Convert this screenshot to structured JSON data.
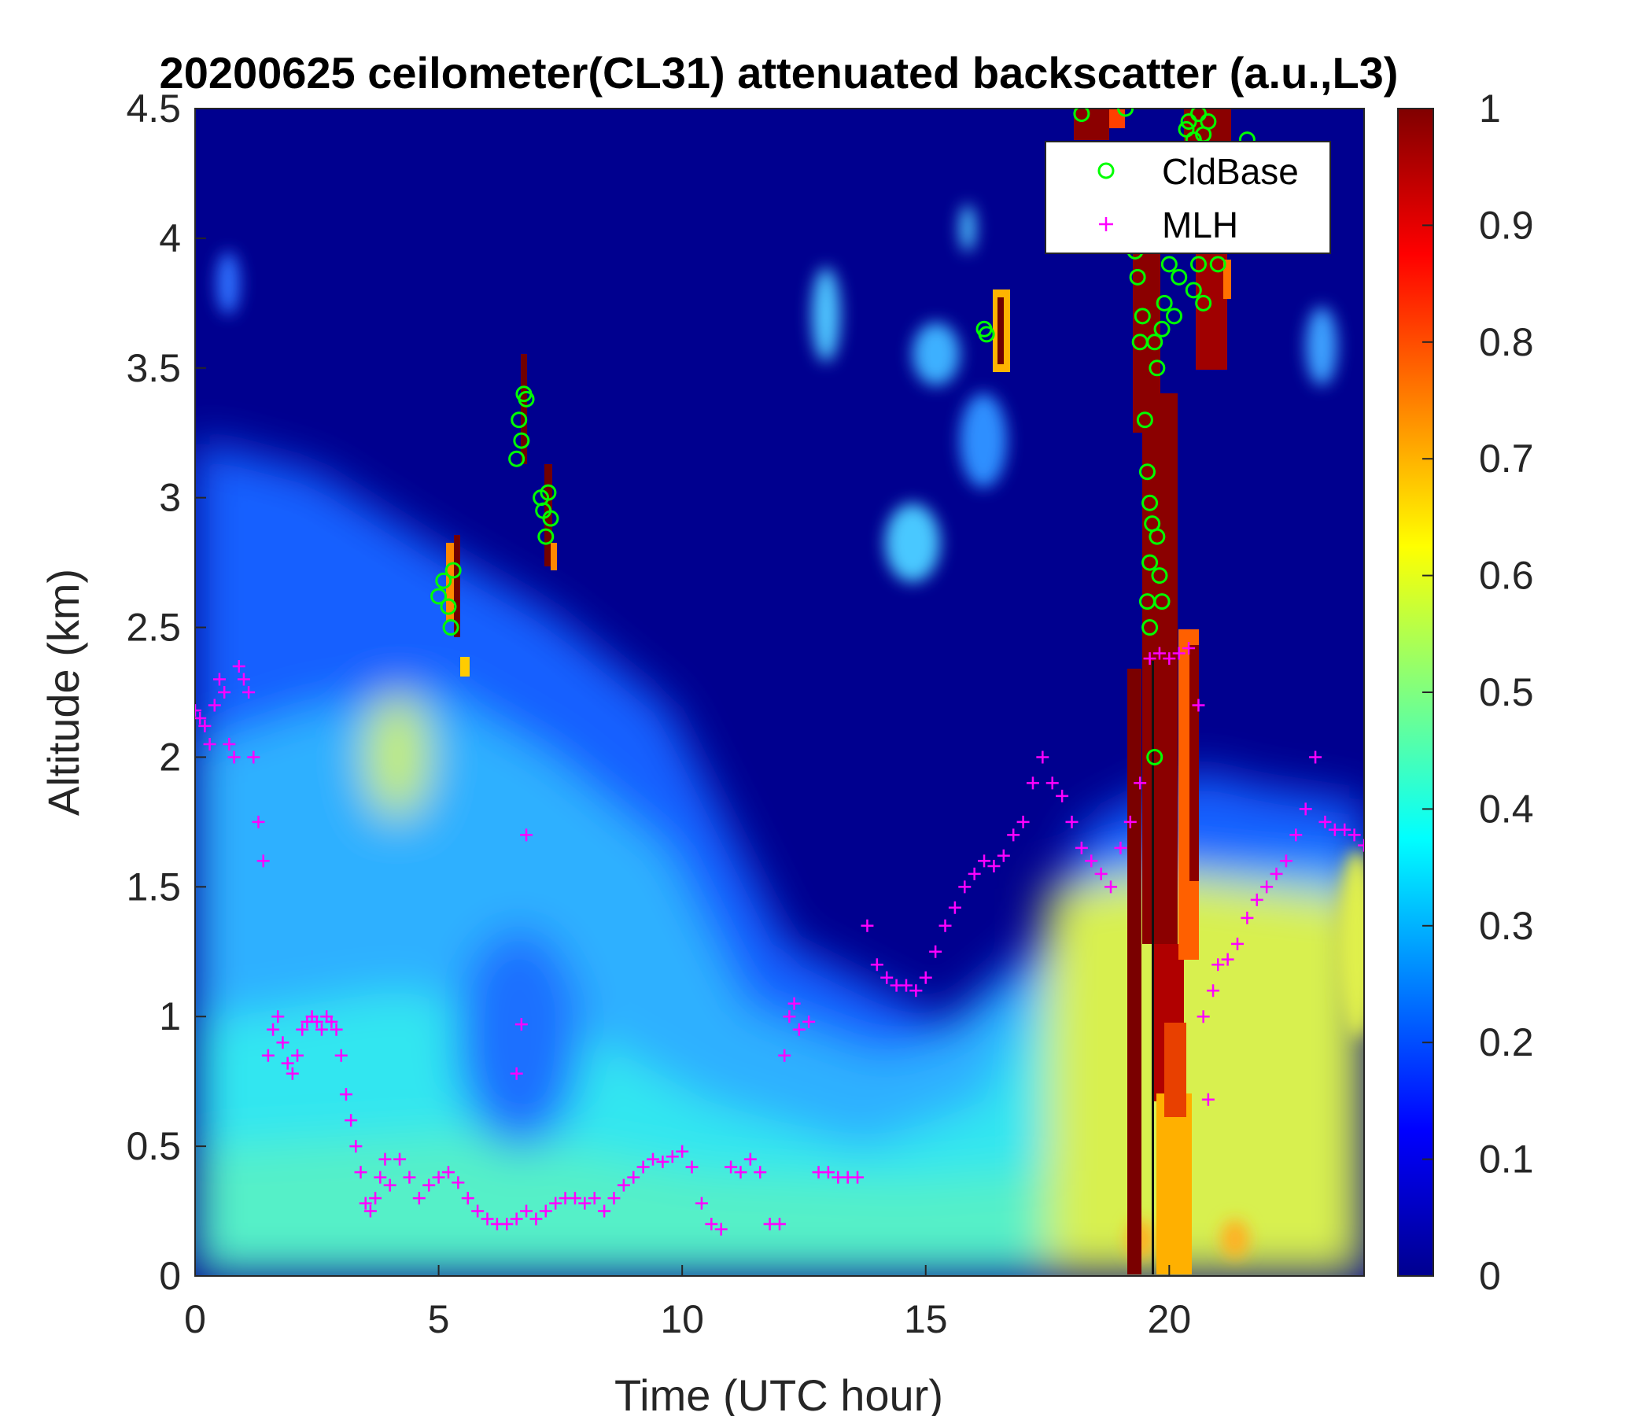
{
  "chart_data": {
    "type": "heatmap",
    "title": "20200625 ceilometer(CL31) attenuated backscatter (a.u.,L3)",
    "xlabel": "Time (UTC hour)",
    "ylabel": "Altitude (km)",
    "xlim": [
      0,
      24
    ],
    "ylim": [
      0,
      4.5
    ],
    "x_ticks": [
      "0",
      "5",
      "10",
      "15",
      "20"
    ],
    "y_ticks": [
      "0",
      "0.5",
      "1",
      "1.5",
      "2",
      "2.5",
      "3",
      "3.5",
      "4",
      "4.5"
    ],
    "colorbar": {
      "colormap": "jet",
      "range": [
        0,
        1
      ],
      "ticks": [
        "0",
        "0.1",
        "0.2",
        "0.3",
        "0.4",
        "0.5",
        "0.6",
        "0.7",
        "0.8",
        "0.9",
        "1"
      ]
    },
    "legend": {
      "placement": "top-right",
      "entries": [
        "CldBase",
        "MLH"
      ]
    },
    "colors": {
      "CldBase": "#00ff00",
      "MLH": "#ff00ff",
      "background": "#00008f"
    },
    "backscatter_description_points": [
      {
        "x": 2,
        "y": 0.2,
        "value": 0.45
      },
      {
        "x": 4,
        "y": 2.0,
        "value": 0.55
      },
      {
        "x": 10,
        "y": 0.5,
        "value": 0.3
      },
      {
        "x": 19.5,
        "y": 0.2,
        "value": 0.6
      },
      {
        "x": 20,
        "y": 1.5,
        "value": 1.0
      },
      {
        "x": 23,
        "y": 0.5,
        "value": 0.5
      }
    ],
    "series": [
      {
        "name": "CldBase",
        "marker": "circle",
        "points": [
          [
            5.0,
            2.62
          ],
          [
            5.1,
            2.68
          ],
          [
            5.2,
            2.58
          ],
          [
            5.25,
            2.5
          ],
          [
            5.3,
            2.72
          ],
          [
            6.6,
            3.15
          ],
          [
            6.65,
            3.3
          ],
          [
            6.7,
            3.22
          ],
          [
            6.75,
            3.4
          ],
          [
            6.8,
            3.38
          ],
          [
            7.1,
            3.0
          ],
          [
            7.15,
            2.95
          ],
          [
            7.2,
            2.85
          ],
          [
            7.25,
            3.02
          ],
          [
            7.3,
            2.92
          ],
          [
            16.2,
            3.65
          ],
          [
            16.25,
            3.63
          ],
          [
            18.2,
            4.48
          ],
          [
            19.1,
            4.5
          ],
          [
            19.3,
            3.95
          ],
          [
            19.35,
            3.85
          ],
          [
            19.4,
            3.6
          ],
          [
            19.45,
            3.7
          ],
          [
            19.5,
            3.3
          ],
          [
            19.55,
            3.1
          ],
          [
            19.6,
            2.98
          ],
          [
            19.65,
            2.9
          ],
          [
            19.6,
            2.75
          ],
          [
            19.55,
            2.6
          ],
          [
            19.6,
            2.5
          ],
          [
            19.7,
            2.0
          ],
          [
            19.75,
            2.85
          ],
          [
            19.8,
            2.7
          ],
          [
            19.85,
            2.6
          ],
          [
            19.7,
            3.6
          ],
          [
            19.75,
            3.5
          ],
          [
            19.85,
            3.65
          ],
          [
            19.9,
            3.75
          ],
          [
            20.0,
            3.9
          ],
          [
            20.1,
            3.7
          ],
          [
            20.2,
            3.85
          ],
          [
            20.3,
            4.2
          ],
          [
            20.35,
            4.42
          ],
          [
            20.4,
            4.45
          ],
          [
            20.5,
            4.38
          ],
          [
            20.6,
            4.48
          ],
          [
            20.7,
            4.4
          ],
          [
            20.8,
            4.45
          ],
          [
            20.5,
            3.8
          ],
          [
            20.6,
            3.9
          ],
          [
            20.7,
            3.75
          ],
          [
            21.0,
            3.9
          ],
          [
            21.6,
            4.38
          ]
        ]
      },
      {
        "name": "MLH",
        "marker": "plus",
        "points": [
          [
            0.0,
            2.18
          ],
          [
            0.1,
            2.15
          ],
          [
            0.2,
            2.12
          ],
          [
            0.3,
            2.05
          ],
          [
            0.4,
            2.2
          ],
          [
            0.5,
            2.3
          ],
          [
            0.6,
            2.25
          ],
          [
            0.7,
            2.05
          ],
          [
            0.8,
            2.0
          ],
          [
            0.9,
            2.35
          ],
          [
            1.0,
            2.3
          ],
          [
            1.1,
            2.25
          ],
          [
            1.2,
            2.0
          ],
          [
            1.3,
            1.75
          ],
          [
            1.4,
            1.6
          ],
          [
            1.5,
            0.85
          ],
          [
            1.6,
            0.95
          ],
          [
            1.7,
            1.0
          ],
          [
            1.8,
            0.9
          ],
          [
            1.9,
            0.82
          ],
          [
            2.0,
            0.78
          ],
          [
            2.1,
            0.85
          ],
          [
            2.2,
            0.95
          ],
          [
            2.3,
            0.98
          ],
          [
            2.4,
            1.0
          ],
          [
            2.5,
            0.98
          ],
          [
            2.6,
            0.95
          ],
          [
            2.7,
            1.0
          ],
          [
            2.8,
            0.98
          ],
          [
            2.9,
            0.95
          ],
          [
            3.0,
            0.85
          ],
          [
            3.1,
            0.7
          ],
          [
            3.2,
            0.6
          ],
          [
            3.3,
            0.5
          ],
          [
            3.4,
            0.4
          ],
          [
            3.5,
            0.28
          ],
          [
            3.6,
            0.25
          ],
          [
            3.7,
            0.3
          ],
          [
            3.8,
            0.38
          ],
          [
            3.9,
            0.45
          ],
          [
            4.0,
            0.35
          ],
          [
            4.2,
            0.45
          ],
          [
            4.4,
            0.38
          ],
          [
            4.6,
            0.3
          ],
          [
            4.8,
            0.35
          ],
          [
            5.0,
            0.38
          ],
          [
            5.2,
            0.4
          ],
          [
            5.4,
            0.36
          ],
          [
            5.6,
            0.3
          ],
          [
            5.8,
            0.25
          ],
          [
            6.0,
            0.22
          ],
          [
            6.2,
            0.2
          ],
          [
            6.4,
            0.2
          ],
          [
            6.6,
            0.22
          ],
          [
            6.8,
            0.25
          ],
          [
            6.6,
            0.78
          ],
          [
            6.7,
            0.97
          ],
          [
            6.8,
            1.7
          ],
          [
            7.0,
            0.22
          ],
          [
            7.2,
            0.25
          ],
          [
            7.4,
            0.28
          ],
          [
            7.6,
            0.3
          ],
          [
            7.8,
            0.3
          ],
          [
            8.0,
            0.28
          ],
          [
            8.2,
            0.3
          ],
          [
            8.4,
            0.25
          ],
          [
            8.6,
            0.3
          ],
          [
            8.8,
            0.35
          ],
          [
            9.0,
            0.38
          ],
          [
            9.2,
            0.42
          ],
          [
            9.4,
            0.45
          ],
          [
            9.6,
            0.44
          ],
          [
            9.8,
            0.46
          ],
          [
            10.0,
            0.48
          ],
          [
            10.2,
            0.42
          ],
          [
            10.4,
            0.28
          ],
          [
            10.6,
            0.2
          ],
          [
            10.8,
            0.18
          ],
          [
            11.0,
            0.42
          ],
          [
            11.2,
            0.4
          ],
          [
            11.4,
            0.45
          ],
          [
            11.6,
            0.4
          ],
          [
            11.8,
            0.2
          ],
          [
            12.0,
            0.2
          ],
          [
            12.1,
            0.85
          ],
          [
            12.2,
            1.0
          ],
          [
            12.3,
            1.05
          ],
          [
            12.4,
            0.95
          ],
          [
            12.6,
            0.98
          ],
          [
            12.8,
            0.4
          ],
          [
            13.0,
            0.4
          ],
          [
            13.2,
            0.38
          ],
          [
            13.4,
            0.38
          ],
          [
            13.6,
            0.38
          ],
          [
            13.8,
            1.35
          ],
          [
            14.0,
            1.2
          ],
          [
            14.2,
            1.15
          ],
          [
            14.4,
            1.12
          ],
          [
            14.6,
            1.12
          ],
          [
            14.8,
            1.1
          ],
          [
            15.0,
            1.15
          ],
          [
            15.2,
            1.25
          ],
          [
            15.4,
            1.35
          ],
          [
            15.6,
            1.42
          ],
          [
            15.8,
            1.5
          ],
          [
            16.0,
            1.55
          ],
          [
            16.2,
            1.6
          ],
          [
            16.4,
            1.58
          ],
          [
            16.6,
            1.62
          ],
          [
            16.8,
            1.7
          ],
          [
            17.0,
            1.75
          ],
          [
            17.2,
            1.9
          ],
          [
            17.4,
            2.0
          ],
          [
            17.6,
            1.9
          ],
          [
            17.8,
            1.85
          ],
          [
            18.0,
            1.75
          ],
          [
            18.2,
            1.65
          ],
          [
            18.4,
            1.6
          ],
          [
            18.6,
            1.55
          ],
          [
            18.8,
            1.5
          ],
          [
            19.0,
            1.65
          ],
          [
            19.2,
            1.75
          ],
          [
            19.4,
            1.9
          ],
          [
            19.6,
            2.38
          ],
          [
            19.8,
            2.4
          ],
          [
            20.0,
            2.38
          ],
          [
            20.2,
            2.4
          ],
          [
            20.4,
            2.42
          ],
          [
            20.6,
            2.2
          ],
          [
            20.7,
            1.0
          ],
          [
            20.8,
            0.68
          ],
          [
            20.9,
            1.1
          ],
          [
            21.0,
            1.2
          ],
          [
            21.2,
            1.22
          ],
          [
            21.4,
            1.28
          ],
          [
            21.6,
            1.38
          ],
          [
            21.8,
            1.45
          ],
          [
            22.0,
            1.5
          ],
          [
            22.2,
            1.55
          ],
          [
            22.4,
            1.6
          ],
          [
            22.6,
            1.7
          ],
          [
            22.8,
            1.8
          ],
          [
            23.0,
            2.0
          ],
          [
            23.2,
            1.75
          ],
          [
            23.4,
            1.72
          ],
          [
            23.6,
            1.72
          ],
          [
            23.8,
            1.7
          ],
          [
            24.0,
            1.66
          ]
        ]
      }
    ]
  }
}
